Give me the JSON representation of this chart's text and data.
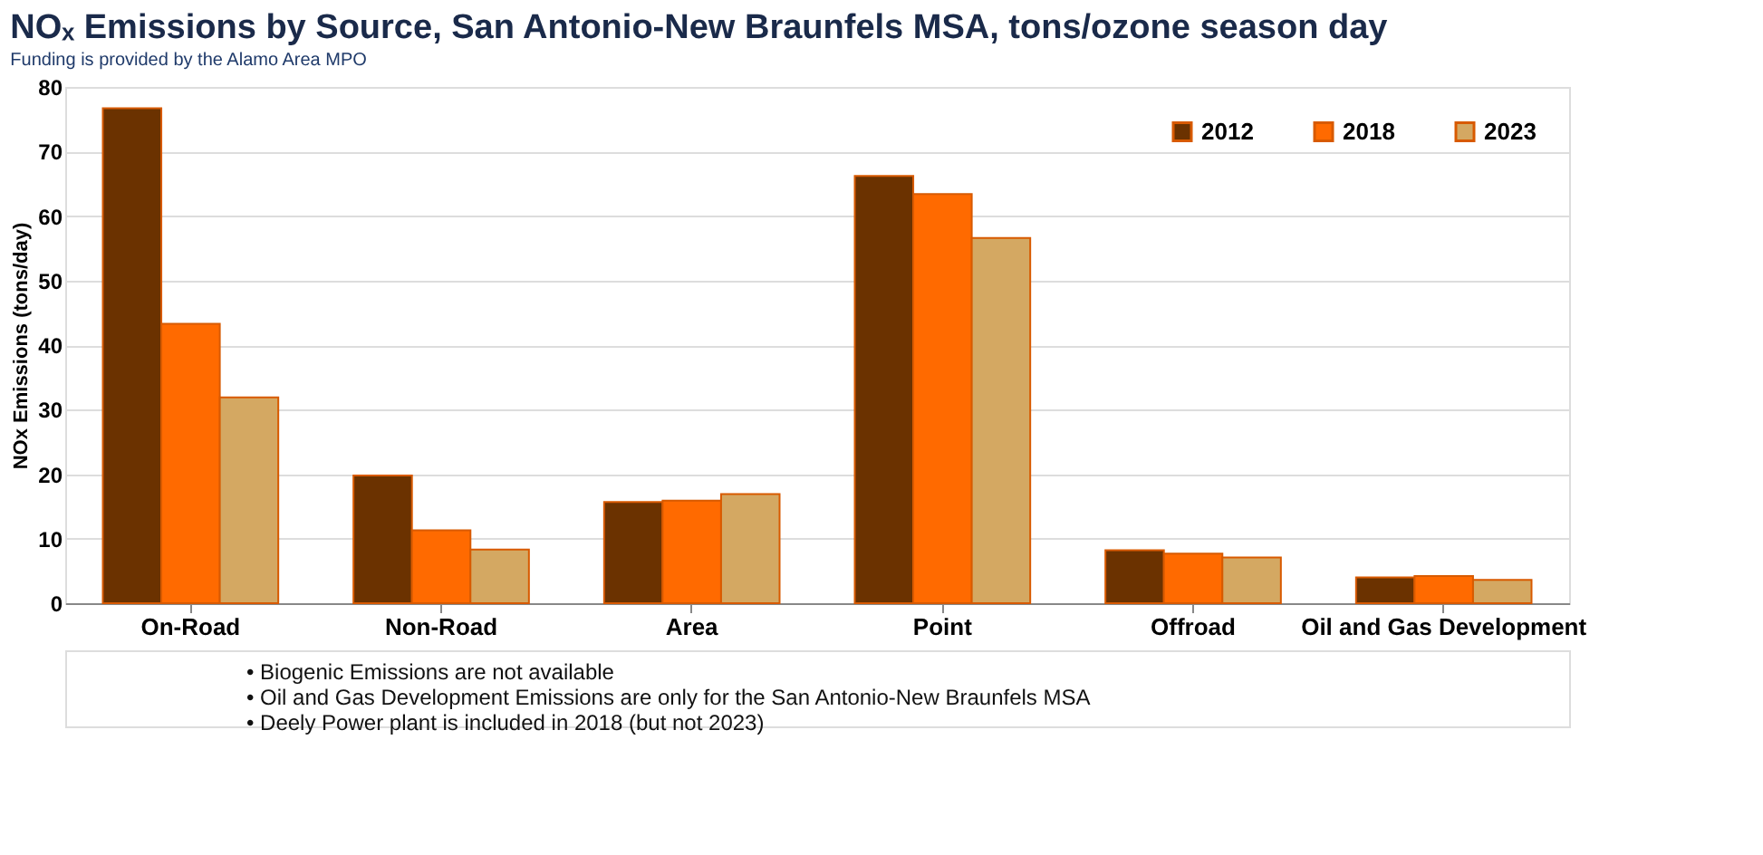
{
  "chart_data": {
    "type": "bar",
    "title": "NOₓ Emissions by Source, San Antonio-New Braunfels MSA, tons/ozone season day",
    "subtitle": "Funding is provided by the Alamo Area MPO",
    "ylabel": "NOx Emissions (tons/day)",
    "categories": [
      "On-Road",
      "Non-Road",
      "Area",
      "Point",
      "Offroad",
      "Oil and Gas Development"
    ],
    "series": [
      {
        "name": "2012",
        "color": "#6b3200",
        "values": [
          76.7,
          19.8,
          15.7,
          66.2,
          8.2,
          4.0
        ]
      },
      {
        "name": "2018",
        "color": "#ff6a00",
        "values": [
          43.3,
          11.3,
          15.9,
          63.4,
          7.7,
          4.2
        ]
      },
      {
        "name": "2023",
        "color": "#d4a862",
        "values": [
          31.9,
          8.3,
          16.9,
          56.6,
          7.1,
          3.6
        ]
      }
    ],
    "ylim": [
      0,
      80
    ],
    "yticks": [
      0,
      10,
      20,
      30,
      40,
      50,
      60,
      70,
      80
    ],
    "grid": "y",
    "legend": "top right",
    "annotations": [
      "• Biogenic Emissions are not available",
      "• Oil and Gas Development Emissions are only for the San Antonio-New Braunfels MSA",
      "• Deely Power plant is included in 2018 (but not 2023)"
    ]
  }
}
